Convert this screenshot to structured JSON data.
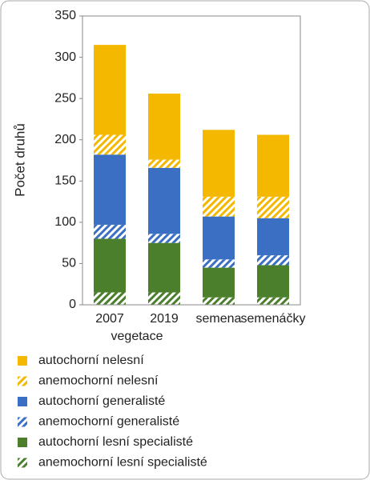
{
  "chart_data": {
    "type": "stacked_bar",
    "y_label": "Počet druhů",
    "categories": [
      "2007",
      "2019",
      "semena",
      "semenáčky"
    ],
    "group_label": "vegetace",
    "series": [
      {
        "name": "anemochorní lesní specialisté",
        "color": "#4b7f2b",
        "pattern": "hatch",
        "values": [
          15,
          15,
          9,
          9
        ]
      },
      {
        "name": "autochorní lesní specialisté",
        "color": "#4b7f2b",
        "pattern": "solid",
        "values": [
          65,
          60,
          36,
          39
        ]
      },
      {
        "name": "anemochorní generalisté",
        "color": "#3a6fc4",
        "pattern": "hatch",
        "values": [
          17,
          11,
          10,
          12
        ]
      },
      {
        "name": "autochorní generalisté",
        "color": "#3a6fc4",
        "pattern": "solid",
        "values": [
          85,
          80,
          52,
          45
        ]
      },
      {
        "name": "anemochorní nelesní",
        "color": "#f5b800",
        "pattern": "hatch",
        "values": [
          24,
          10,
          24,
          26
        ]
      },
      {
        "name": "autochorní nelesní",
        "color": "#f5b800",
        "pattern": "solid",
        "values": [
          109,
          80,
          81,
          75
        ]
      }
    ],
    "ylim": [
      0,
      350
    ],
    "yticks": [
      0,
      50,
      100,
      150,
      200,
      250,
      300,
      350
    ]
  }
}
